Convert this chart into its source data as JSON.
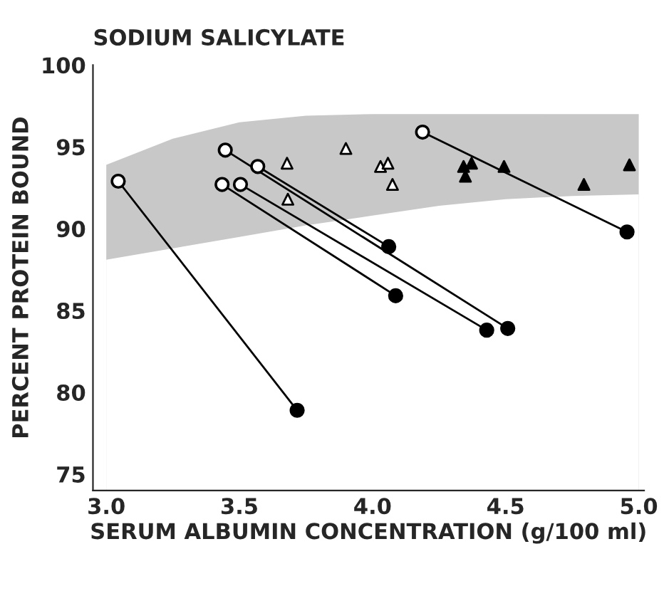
{
  "chart_data": {
    "type": "line",
    "title": "SODIUM SALICYLATE",
    "xlabel": "SERUM ALBUMIN CONCENTRATION (g/100 ml)",
    "ylabel": "PERCENT PROTEIN BOUND",
    "xlim": [
      2.95,
      5.02
    ],
    "ylim": [
      74,
      100
    ],
    "xticks": [
      {
        "value": 3.0,
        "label": "3.0"
      },
      {
        "value": 3.5,
        "label": "3.5"
      },
      {
        "value": 4.0,
        "label": "4.0"
      },
      {
        "value": 4.5,
        "label": "4.5"
      },
      {
        "value": 5.0,
        "label": "5.0"
      }
    ],
    "yticks": [
      75,
      80,
      85,
      90,
      95,
      100
    ],
    "grid": false,
    "legend": false,
    "series": [
      {
        "type": "area",
        "color": "#c8c8c8",
        "x": [
          3.0,
          3.25,
          3.5,
          3.75,
          4.0,
          4.25,
          4.5,
          4.75,
          5.0
        ],
        "values": [
          93.9,
          95.5,
          96.5,
          96.9,
          97.0,
          97.0,
          97.0,
          97.0,
          97.0
        ]
      },
      {
        "type": "area",
        "color": "#ffffff",
        "x": [
          3.0,
          3.25,
          3.5,
          3.75,
          4.0,
          4.25,
          4.5,
          4.75,
          5.0
        ],
        "values": [
          88.1,
          88.8,
          89.5,
          90.2,
          90.8,
          91.4,
          91.8,
          92.0,
          92.1
        ]
      },
      {
        "type": "line",
        "color": "#000000",
        "marker": "circle",
        "colors": [
          "#ffffff",
          "#000000"
        ],
        "x": [
          3.045,
          3.717
        ],
        "values": [
          92.9,
          78.9
        ]
      },
      {
        "type": "line",
        "color": "#000000",
        "marker": "circle",
        "colors": [
          "#ffffff",
          "#000000"
        ],
        "x": [
          3.447,
          4.508
        ],
        "values": [
          94.8,
          83.9
        ]
      },
      {
        "type": "line",
        "color": "#000000",
        "marker": "circle",
        "colors": [
          "#ffffff",
          "#000000"
        ],
        "x": [
          3.569,
          4.061
        ],
        "values": [
          93.8,
          88.9
        ]
      },
      {
        "type": "line",
        "color": "#000000",
        "marker": "circle",
        "colors": [
          "#ffffff",
          "#000000"
        ],
        "x": [
          3.435,
          4.087
        ],
        "values": [
          92.7,
          85.9
        ]
      },
      {
        "type": "line",
        "color": "#000000",
        "marker": "circle",
        "colors": [
          "#ffffff",
          "#000000"
        ],
        "x": [
          3.504,
          4.429
        ],
        "values": [
          92.7,
          83.8
        ]
      },
      {
        "type": "line",
        "color": "#000000",
        "marker": "circle",
        "colors": [
          "#ffffff",
          "#000000"
        ],
        "x": [
          4.188,
          4.956
        ],
        "values": [
          95.9,
          89.8
        ]
      },
      {
        "type": "scatter",
        "color": "#ffffff",
        "marker": "triangle",
        "x": [
          3.679,
          3.682,
          3.9,
          4.03,
          4.058,
          4.075
        ],
        "values": [
          94.0,
          91.8,
          94.9,
          93.8,
          94.0,
          92.7
        ]
      },
      {
        "type": "scatter",
        "color": "#000000",
        "marker": "triangle",
        "x": [
          4.342,
          4.372,
          4.349,
          4.494,
          4.794,
          4.965
        ],
        "values": [
          93.8,
          94.0,
          93.2,
          93.8,
          92.7,
          93.9
        ]
      }
    ]
  }
}
